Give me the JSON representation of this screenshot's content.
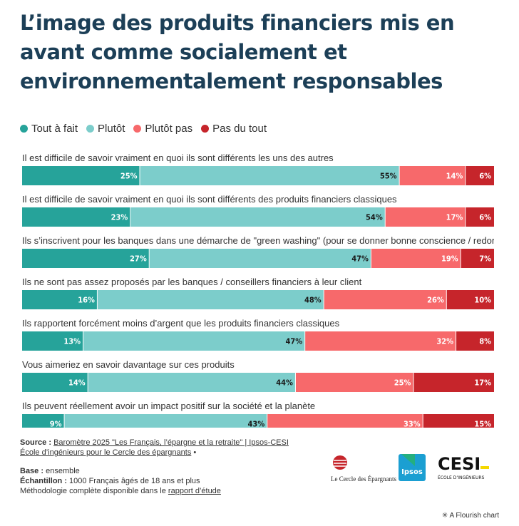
{
  "title": "L’image des produits financiers mis en avant comme socialement et environnementalement responsables",
  "legend": [
    {
      "label": "Tout à fait",
      "color": "#26a39a"
    },
    {
      "label": "Plutôt",
      "color": "#7ccdcb"
    },
    {
      "label": "Plutôt pas",
      "color": "#f7696b"
    },
    {
      "label": "Pas du tout",
      "color": "#c6252b"
    }
  ],
  "chart_data": {
    "type": "bar",
    "stacked": true,
    "orientation": "horizontal",
    "normalized": true,
    "categories": [
      "Il est difficile de savoir vraiment en quoi ils sont différents les uns des autres",
      "Il est difficile de savoir vraiment en quoi ils sont différents des produits financiers classiques",
      "Ils s’inscrivent pour les banques dans une démarche de \"green washing\" (pour se donner bonne conscience / redorer leur image)",
      "Ils ne sont pas assez proposés par les banques / conseillers financiers à leur client",
      "Ils rapportent forcément moins d’argent que les produits financiers classiques",
      "Vous aimeriez en savoir davantage sur ces produits",
      "Ils peuvent réellement avoir un impact positif sur la société et la planète"
    ],
    "series": [
      {
        "name": "Tout à fait",
        "values": [
          25,
          23,
          27,
          16,
          13,
          14,
          9
        ]
      },
      {
        "name": "Plutôt",
        "values": [
          55,
          54,
          47,
          48,
          47,
          44,
          43
        ]
      },
      {
        "name": "Plutôt pas",
        "values": [
          14,
          17,
          19,
          26,
          32,
          25,
          33
        ]
      },
      {
        "name": "Pas du tout",
        "values": [
          6,
          6,
          7,
          10,
          8,
          17,
          15
        ]
      }
    ],
    "value_suffix": "%"
  },
  "footer": {
    "source_label": "Source :",
    "source_link": "Baromètre 2025 \"Les Français, l’épargne et la retraite\" | Ipsos-CESI École d’ingénieurs pour le Cercle des épargnants",
    "source_tail": " •",
    "base_label": "Base :",
    "base_value": " ensemble",
    "sample_label": "Échantillon :",
    "sample_value": " 1000 Français âgés de 18 ans et plus",
    "method_text": "Méthodologie complète disponible dans le ",
    "method_link": "rapport d’étude"
  },
  "logos": {
    "cercle": "Le Cercle des Épargnants",
    "ipsos": "Ipsos",
    "cesi": "CESI",
    "cesi_sub": "ÉCOLE D’INGÉNIEURS"
  },
  "flourish": "A Flourish chart"
}
